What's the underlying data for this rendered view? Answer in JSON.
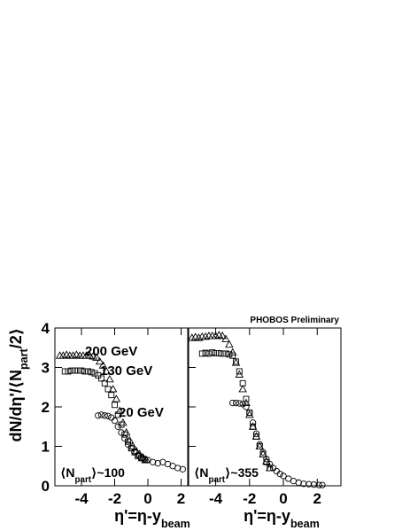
{
  "chart_data": [
    {
      "type": "scatter",
      "ylabel": {
        "main": "dN/dη'/⟨N",
        "sub": "part",
        "end": "/2⟩"
      },
      "xlabel": {
        "main": "η'=η-y",
        "sub": "beam"
      },
      "annotation": {
        "main": "⟨N",
        "sub": "part",
        "end": "⟩~100"
      },
      "xlim": [
        -5.6,
        2.4
      ],
      "xticks": [
        -4,
        -2,
        0,
        2
      ],
      "ylim": [
        0,
        4
      ],
      "yticks": [
        0,
        1,
        2,
        3,
        4
      ],
      "series": [
        {
          "name": "200 GeV",
          "marker": "triangle",
          "color": "#000000",
          "x": [
            -5.3,
            -5.1,
            -4.9,
            -4.7,
            -4.5,
            -4.3,
            -4.1,
            -3.9,
            -3.7,
            -3.5,
            -3.3,
            -3.1,
            -2.9,
            -2.7,
            -2.5,
            -2.3,
            -2.1,
            -1.9,
            -1.7,
            -1.5,
            -1.3,
            -1.1,
            -0.9,
            -0.7,
            -0.5,
            -0.3,
            -0.1
          ],
          "values": [
            3.3,
            3.3,
            3.32,
            3.3,
            3.3,
            3.32,
            3.3,
            3.3,
            3.3,
            3.3,
            3.28,
            3.25,
            3.15,
            3.05,
            2.9,
            2.7,
            2.45,
            2.2,
            1.9,
            1.6,
            1.35,
            1.15,
            1.0,
            0.88,
            0.8,
            0.72,
            0.66
          ]
        },
        {
          "name": "130 GeV",
          "marker": "square",
          "color": "#000000",
          "x": [
            -5.0,
            -4.8,
            -4.6,
            -4.4,
            -4.2,
            -4.0,
            -3.8,
            -3.6,
            -3.4,
            -3.2,
            -3.0,
            -2.8,
            -2.6,
            -2.4,
            -2.2,
            -2.0,
            -1.8,
            -1.6,
            -1.4,
            -1.2,
            -1.0,
            -0.8,
            -0.6,
            -0.4,
            -0.2
          ],
          "values": [
            2.9,
            2.9,
            2.92,
            2.92,
            2.92,
            2.92,
            2.9,
            2.9,
            2.88,
            2.85,
            2.8,
            2.72,
            2.6,
            2.45,
            2.3,
            2.05,
            1.8,
            1.55,
            1.3,
            1.12,
            0.95,
            0.85,
            0.75,
            0.7,
            0.65
          ]
        },
        {
          "name": "20 GeV",
          "marker": "circle",
          "color": "#000000",
          "x": [
            -3.0,
            -2.8,
            -2.6,
            -2.4,
            -2.2,
            -2.0,
            -1.8,
            -1.6,
            -1.4,
            -1.2,
            -1.0,
            -0.8,
            -0.6,
            -0.4,
            -0.2,
            0.0,
            0.3,
            0.6,
            0.9,
            1.2,
            1.5,
            1.8,
            2.1
          ],
          "values": [
            1.78,
            1.8,
            1.78,
            1.77,
            1.73,
            1.65,
            1.5,
            1.35,
            1.2,
            1.05,
            0.95,
            0.85,
            0.78,
            0.72,
            0.68,
            0.65,
            0.6,
            0.57,
            0.6,
            0.55,
            0.5,
            0.45,
            0.42
          ]
        }
      ]
    },
    {
      "type": "scatter",
      "title": "PHOBOS Preliminary",
      "xlabel": {
        "main": "η'=η-y",
        "sub": "beam"
      },
      "annotation": {
        "main": "⟨N",
        "sub": "part",
        "end": "⟩~355"
      },
      "xlim": [
        -5.6,
        3.4
      ],
      "xticks": [
        -4,
        -2,
        0,
        2
      ],
      "ylim": [
        0,
        4
      ],
      "yticks": [
        0,
        1,
        2,
        3,
        4
      ],
      "series": [
        {
          "marker": "triangle",
          "color": "#000000",
          "x": [
            -5.4,
            -5.2,
            -5.0,
            -4.8,
            -4.6,
            -4.4,
            -4.2,
            -4.0,
            -3.8,
            -3.6,
            -3.4,
            -3.2,
            -3.0,
            -2.8,
            -2.6,
            -2.4,
            -2.2,
            -2.0,
            -1.8,
            -1.6,
            -1.4,
            -1.2,
            -1.0,
            -0.8
          ],
          "values": [
            3.75,
            3.77,
            3.75,
            3.78,
            3.78,
            3.8,
            3.8,
            3.8,
            3.82,
            3.8,
            3.72,
            3.58,
            3.38,
            3.12,
            2.82,
            2.45,
            2.1,
            1.8,
            1.5,
            1.25,
            1.0,
            0.8,
            0.62,
            0.45
          ]
        },
        {
          "marker": "square",
          "color": "#000000",
          "x": [
            -4.8,
            -4.6,
            -4.4,
            -4.2,
            -4.0,
            -3.8,
            -3.6,
            -3.4,
            -3.2,
            -3.0,
            -2.8,
            -2.6,
            -2.4,
            -2.2,
            -2.0,
            -1.8,
            -1.6,
            -1.4,
            -1.2,
            -1.0,
            -0.8
          ],
          "values": [
            3.35,
            3.37,
            3.35,
            3.38,
            3.36,
            3.36,
            3.35,
            3.35,
            3.33,
            3.3,
            3.15,
            2.9,
            2.6,
            2.2,
            1.85,
            1.5,
            1.25,
            1.0,
            0.8,
            0.6,
            0.45
          ]
        },
        {
          "marker": "circle",
          "color": "#000000",
          "x": [
            -3.0,
            -2.8,
            -2.6,
            -2.4,
            -2.2,
            -2.0,
            -1.8,
            -1.6,
            -1.4,
            -1.2,
            -1.0,
            -0.8,
            -0.6,
            -0.4,
            -0.2,
            0.0,
            0.3,
            0.6,
            0.9,
            1.2,
            1.5,
            1.8,
            2.1,
            2.3
          ],
          "values": [
            2.1,
            2.1,
            2.09,
            2.07,
            2.0,
            1.85,
            1.6,
            1.32,
            1.05,
            0.85,
            0.68,
            0.55,
            0.45,
            0.37,
            0.3,
            0.25,
            0.18,
            0.12,
            0.08,
            0.05,
            0.04,
            0.03,
            0.02,
            0.02
          ]
        }
      ]
    }
  ]
}
